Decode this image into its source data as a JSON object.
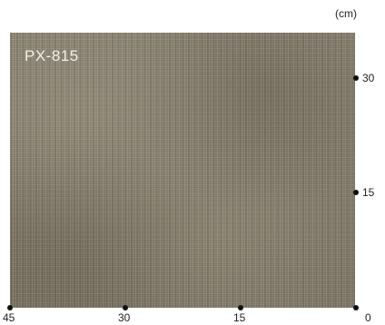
{
  "unit_label": "(cm)",
  "swatch": {
    "product_code": "PX-815",
    "base_color": "#857d6d"
  },
  "scale": {
    "horizontal_ticks": [
      "45",
      "30",
      "15",
      "0"
    ],
    "vertical_ticks": [
      "30",
      "15"
    ]
  }
}
